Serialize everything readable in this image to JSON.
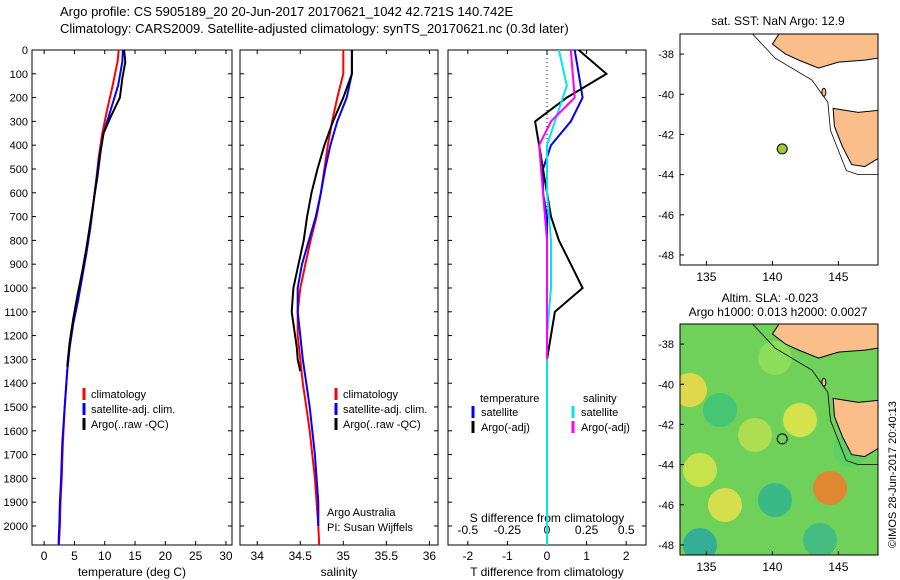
{
  "header": {
    "line1": "Argo profile: CS 5905189_20 20-Jun-2017 20170621_1042 42.721S 140.742E",
    "line2": "Climatology: CARS2009. Satellite-adjusted climatology: synTS_20170621.nc (0.3d later)"
  },
  "colors": {
    "climatology": "#ff0000",
    "satellite": "#0000ff",
    "argo": "#000000",
    "cyan": "#00e5ee",
    "magenta": "#ff00ff",
    "land": "#f9be8a",
    "dot": "#9acd32"
  },
  "credit": "©IMOS 28-Jun-2017 20:40:13",
  "chart_data": [
    {
      "type": "line",
      "xlabel": "temperature (deg C)",
      "ylabel": "",
      "xlim": [
        -2,
        31
      ],
      "ylim": [
        2080,
        0
      ],
      "xticks": [
        "0",
        "5",
        "10",
        "15",
        "20",
        "25",
        "30"
      ],
      "yticks": [
        "0",
        "100",
        "200",
        "300",
        "400",
        "500",
        "600",
        "700",
        "800",
        "900",
        "1000",
        "1100",
        "1200",
        "1300",
        "1400",
        "1500",
        "1600",
        "1700",
        "1800",
        "1900",
        "2000"
      ],
      "legend": [
        "climatology",
        "satellite-adj. clim.",
        "Argo(..raw -QC)"
      ],
      "series": [
        {
          "name": "climatology",
          "x": [
            12.3,
            12.1,
            11.3,
            10.4,
            9.6,
            9.0,
            8.6,
            8.1,
            7.6,
            7.0,
            6.3,
            5.6,
            4.8,
            4.2,
            3.8,
            3.4,
            3.1,
            2.9,
            2.7,
            2.6,
            2.5,
            2.4
          ],
          "y": [
            0,
            50,
            150,
            250,
            350,
            450,
            550,
            650,
            750,
            850,
            950,
            1050,
            1150,
            1250,
            1350,
            1500,
            1650,
            1800,
            1900,
            2000,
            2050,
            2080
          ]
        },
        {
          "name": "satellite-adj. clim.",
          "x": [
            13.0,
            12.9,
            12.2,
            11.0,
            9.8,
            9.1,
            8.6,
            8.1,
            7.6,
            7.0,
            6.3,
            5.6,
            4.8,
            4.2,
            3.8,
            3.4,
            3.0,
            2.8,
            2.6,
            2.5,
            2.4,
            2.4
          ],
          "y": [
            0,
            50,
            150,
            250,
            350,
            450,
            550,
            650,
            750,
            850,
            950,
            1050,
            1150,
            1250,
            1350,
            1500,
            1650,
            1800,
            1900,
            2000,
            2050,
            2080
          ]
        },
        {
          "name": "Argo(..raw -QC)",
          "x": [
            13.2,
            13.4,
            12.9,
            12.5,
            11.0,
            9.8,
            9.3,
            8.8,
            8.2,
            7.6,
            7.0,
            6.3,
            5.5,
            4.8,
            4.2,
            3.8
          ],
          "y": [
            0,
            50,
            120,
            200,
            280,
            350,
            430,
            530,
            630,
            730,
            830,
            930,
            1030,
            1130,
            1230,
            1330
          ]
        }
      ]
    },
    {
      "type": "line",
      "xlabel": "salinity",
      "xlim": [
        33.8,
        36.1
      ],
      "ylim": [
        2080,
        0
      ],
      "xticks": [
        "34",
        "34.5",
        "35",
        "35.5",
        "36"
      ],
      "legend": [
        "climatology",
        "satellite-adj. clim.",
        "Argo(..raw -QC)"
      ],
      "annotations": [
        "Argo Australia",
        "PI: Susan Wijffels"
      ],
      "series": [
        {
          "name": "climatology",
          "x": [
            35.0,
            35.0,
            34.93,
            34.87,
            34.82,
            34.78,
            34.74,
            34.69,
            34.62,
            34.56,
            34.5,
            34.47,
            34.47,
            34.5,
            34.53,
            34.57,
            34.61,
            34.64,
            34.67,
            34.69,
            34.71,
            34.72
          ],
          "y": [
            0,
            100,
            200,
            300,
            400,
            500,
            600,
            700,
            800,
            900,
            1000,
            1100,
            1200,
            1300,
            1400,
            1500,
            1600,
            1700,
            1800,
            1900,
            2000,
            2080
          ]
        },
        {
          "name": "satellite-adj. clim.",
          "x": [
            35.1,
            35.1,
            35.04,
            34.93,
            34.85,
            34.79,
            34.74,
            34.68,
            34.6,
            34.52,
            34.47,
            34.47,
            34.5,
            34.53,
            34.57,
            34.61,
            34.64,
            34.67,
            34.69,
            34.71,
            34.71
          ],
          "y": [
            0,
            100,
            200,
            300,
            400,
            500,
            600,
            700,
            800,
            900,
            1000,
            1100,
            1200,
            1300,
            1400,
            1500,
            1600,
            1700,
            1800,
            1900,
            2000
          ]
        },
        {
          "name": "Argo(..raw -QC)",
          "x": [
            35.1,
            35.1,
            35.0,
            34.88,
            34.78,
            34.7,
            34.63,
            34.58,
            34.54,
            34.48,
            34.42,
            34.4,
            34.44,
            34.46,
            34.47,
            34.5
          ],
          "y": [
            0,
            100,
            200,
            300,
            400,
            500,
            600,
            700,
            800,
            900,
            1000,
            1100,
            1200,
            1250,
            1300,
            1350
          ]
        }
      ]
    },
    {
      "type": "line",
      "xlabel": "T difference from climatology",
      "xlabel2": "S difference from climatology",
      "xlim": [
        -2.5,
        2.5
      ],
      "ylim": [
        2080,
        0
      ],
      "xticks": [
        "-2",
        "-1",
        "0",
        "1",
        "2"
      ],
      "xticks2": [
        "-0.5",
        "-0.25",
        "0",
        "0.25",
        "0.5"
      ],
      "legend_groups": [
        "temperature",
        "salinity"
      ],
      "legend": [
        "satellite",
        "Argo(-adj)",
        "satellite",
        "Argo(-adj)"
      ],
      "series": [
        {
          "name": "temperature satellite",
          "x": [
            0.7,
            0.8,
            0.9,
            0.6,
            0.1,
            -0.1,
            -0.1,
            0.0,
            0.0,
            0.0,
            0.0,
            0.0,
            0.0,
            0.0,
            0.0
          ],
          "y": [
            0,
            100,
            200,
            300,
            400,
            500,
            600,
            700,
            800,
            900,
            1000,
            1200,
            1500,
            1800,
            2080
          ]
        },
        {
          "name": "temperature Argo(-adj)",
          "x": [
            0.8,
            1.5,
            0.5,
            -0.3,
            -0.2,
            -0.1,
            0.0,
            0.1,
            0.3,
            0.6,
            0.9,
            0.2,
            0.0
          ],
          "y": [
            0,
            100,
            200,
            300,
            400,
            500,
            600,
            700,
            800,
            900,
            1000,
            1100,
            1300
          ]
        },
        {
          "name": "salinity satellite",
          "x": [
            0.3,
            0.5,
            0.2,
            0.0,
            0.0,
            0.1,
            0.1,
            0.0,
            0.0,
            0.0
          ],
          "y": [
            0,
            150,
            300,
            400,
            600,
            800,
            1000,
            1200,
            1600,
            2080
          ]
        },
        {
          "name": "salinity Argo(-adj)",
          "x": [
            0.6,
            0.7,
            0.1,
            -0.2,
            -0.1,
            0.0,
            0.0,
            0.0,
            0.0
          ],
          "y": [
            0,
            200,
            300,
            400,
            600,
            800,
            1000,
            1200,
            1300
          ]
        }
      ]
    },
    {
      "type": "scatter",
      "title": "sat. SST: NaN Argo: 12.9",
      "xlim": [
        133,
        148
      ],
      "ylim": [
        -48.5,
        -37
      ],
      "xticks": [
        "135",
        "140",
        "145"
      ],
      "yticks": [
        "-38",
        "-40",
        "-42",
        "-44",
        "-46",
        "-48"
      ],
      "points": [
        {
          "lon": 140.742,
          "lat": -42.721
        }
      ]
    },
    {
      "type": "heatmap",
      "title": "Altim. SLA: -0.023",
      "subtitle": "Argo h1000: 0.013 h2000: 0.0027",
      "xlim": [
        133,
        148
      ],
      "ylim": [
        -48.5,
        -37
      ],
      "xticks": [
        "135",
        "140",
        "145"
      ],
      "yticks": [
        "-38",
        "-40",
        "-42",
        "-44",
        "-46",
        "-48"
      ],
      "points": [
        {
          "lon": 140.742,
          "lat": -42.721
        }
      ]
    }
  ]
}
